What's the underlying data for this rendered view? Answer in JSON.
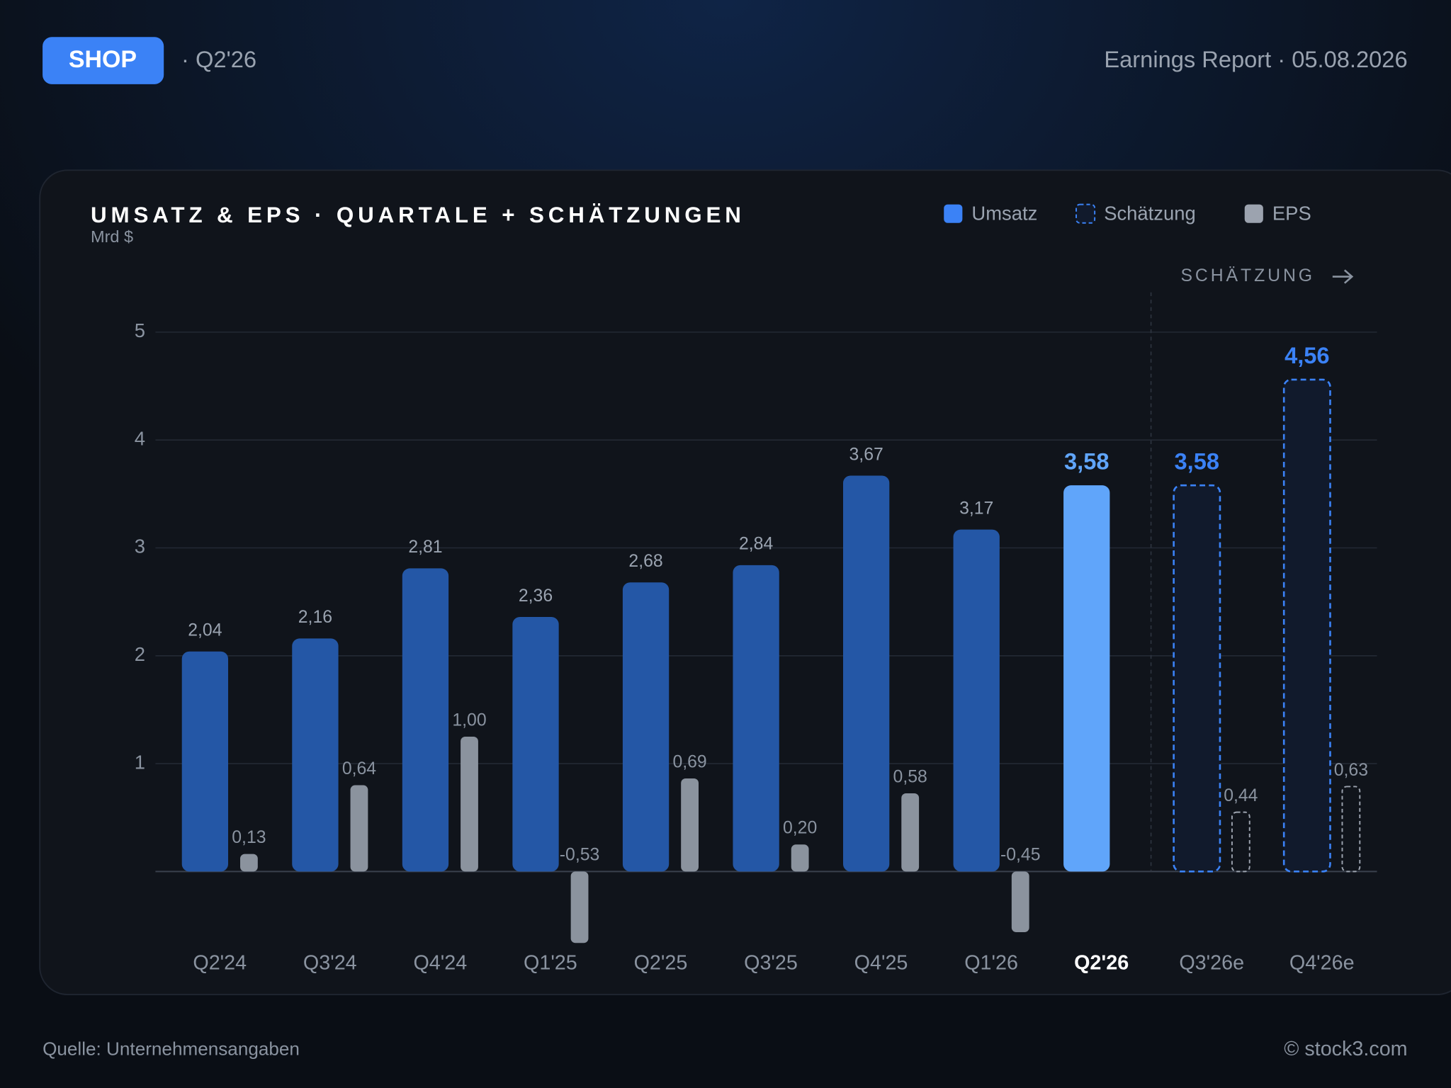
{
  "header": {
    "ticker": "SHOP",
    "period": "· Q2'26",
    "report": "Earnings Report · 05.08.2026"
  },
  "chart_data": {
    "type": "bar",
    "title": "UMSATZ & EPS · QUARTALE + SCHÄTZUNGEN",
    "subtitle": "Mrd $",
    "annotation": "SCHÄTZUNG",
    "categories": [
      "Q2'24",
      "Q3'24",
      "Q4'24",
      "Q1'25",
      "Q2'25",
      "Q3'25",
      "Q4'25",
      "Q1'26",
      "Q2'26",
      "Q3'26e",
      "Q4'26e"
    ],
    "highlight": "Q2'26",
    "series": [
      {
        "name": "Umsatz",
        "color": "#2457a6",
        "values": [
          2.04,
          2.16,
          2.81,
          2.36,
          2.68,
          2.84,
          3.67,
          3.17,
          3.58,
          null,
          null
        ],
        "value_labels": [
          "2,04",
          "2,16",
          "2,81",
          "2,36",
          "2,68",
          "2,84",
          "3,67",
          "3,17",
          "3,58",
          null,
          null
        ]
      },
      {
        "name": "Schätzung",
        "color": "#3b82f6",
        "values": [
          null,
          null,
          null,
          null,
          null,
          null,
          null,
          null,
          null,
          3.58,
          4.56
        ],
        "value_labels": [
          null,
          null,
          null,
          null,
          null,
          null,
          null,
          null,
          null,
          "3,58",
          "4,56"
        ]
      },
      {
        "name": "EPS",
        "color": "#8b939e",
        "axis": "y2",
        "values": [
          0.13,
          0.64,
          1.0,
          -0.53,
          0.69,
          0.2,
          0.58,
          -0.45,
          null,
          0.44,
          0.63
        ],
        "value_labels": [
          "0,13",
          "0,64",
          "1,00",
          "-0,53",
          "0,69",
          "0,20",
          "0,58",
          "-0,45",
          null,
          "0,44",
          "0,63"
        ]
      }
    ],
    "ylim": [
      0,
      5
    ],
    "yticks": [
      1,
      2,
      3,
      4,
      5
    ],
    "y2lim": [
      0,
      4
    ],
    "grid": true,
    "legend": "top-right"
  },
  "footer": {
    "source": "Quelle: Unternehmensangaben",
    "copyright": "© stock3.com"
  }
}
